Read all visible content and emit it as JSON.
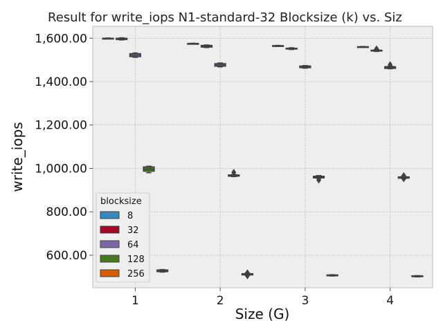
{
  "chart_data": {
    "type": "box",
    "title": "Result for write_iops N1-standard-32 Blocksize (k) vs. Siz",
    "xlabel": "Size (G)",
    "ylabel": "write_iops",
    "categories": [
      "1",
      "2",
      "3",
      "4"
    ],
    "ylim": [
      450,
      1655
    ],
    "yticks": [
      600,
      800,
      1000,
      1200,
      1400,
      1600
    ],
    "ytick_labels": [
      "600.00",
      "800.00",
      "1,000.00",
      "1,200.00",
      "1,400.00",
      "1,600.00"
    ],
    "grid": true,
    "legend": {
      "title": "blocksize",
      "placement": "lower-left"
    },
    "series": [
      {
        "name": "8",
        "color": "#348ABD",
        "boxes": [
          {
            "q1": 1598,
            "median": 1599,
            "q3": 1600,
            "whislo": 1597,
            "whishi": 1601,
            "fliers": []
          },
          {
            "q1": 1574,
            "median": 1575,
            "q3": 1576,
            "whislo": 1573,
            "whishi": 1577,
            "fliers": []
          },
          {
            "q1": 1564,
            "median": 1565,
            "q3": 1566,
            "whislo": 1563,
            "whishi": 1567,
            "fliers": []
          },
          {
            "q1": 1559,
            "median": 1560,
            "q3": 1561,
            "whislo": 1558,
            "whishi": 1562,
            "fliers": []
          }
        ]
      },
      {
        "name": "32",
        "color": "#A60628",
        "boxes": [
          {
            "q1": 1594,
            "median": 1597,
            "q3": 1600,
            "whislo": 1592,
            "whishi": 1602,
            "fliers": []
          },
          {
            "q1": 1559,
            "median": 1563,
            "q3": 1567,
            "whislo": 1557,
            "whishi": 1569,
            "fliers": []
          },
          {
            "q1": 1550,
            "median": 1552,
            "q3": 1554,
            "whislo": 1548,
            "whishi": 1556,
            "fliers": []
          },
          {
            "q1": 1541,
            "median": 1543,
            "q3": 1545,
            "whislo": 1539,
            "whishi": 1547,
            "fliers": [
              1551
            ]
          }
        ]
      },
      {
        "name": "64",
        "color": "#7A68A6",
        "boxes": [
          {
            "q1": 1515,
            "median": 1522,
            "q3": 1529,
            "whislo": 1512,
            "whishi": 1532,
            "fliers": []
          },
          {
            "q1": 1471,
            "median": 1477,
            "q3": 1483,
            "whislo": 1468,
            "whishi": 1486,
            "fliers": []
          },
          {
            "q1": 1464,
            "median": 1468,
            "q3": 1472,
            "whislo": 1462,
            "whishi": 1474,
            "fliers": []
          },
          {
            "q1": 1461,
            "median": 1465,
            "q3": 1469,
            "whislo": 1459,
            "whishi": 1471,
            "fliers": [
              1478
            ]
          }
        ]
      },
      {
        "name": "128",
        "color": "#467821",
        "boxes": [
          {
            "q1": 987,
            "median": 997,
            "q3": 1007,
            "whislo": 980,
            "whishi": 1010,
            "fliers": []
          },
          {
            "q1": 964,
            "median": 967,
            "q3": 970,
            "whislo": 962,
            "whishi": 972,
            "fliers": [
              982
            ]
          },
          {
            "q1": 956,
            "median": 960,
            "q3": 964,
            "whislo": 954,
            "whishi": 967,
            "fliers": [
              946
            ]
          },
          {
            "q1": 955,
            "median": 958,
            "q3": 961,
            "whislo": 953,
            "whishi": 963,
            "fliers": [
              952,
              967
            ]
          }
        ]
      },
      {
        "name": "256",
        "color": "#D55E00",
        "boxes": [
          {
            "q1": 524,
            "median": 528,
            "q3": 532,
            "whislo": 522,
            "whishi": 534,
            "fliers": []
          },
          {
            "q1": 509,
            "median": 512,
            "q3": 515,
            "whislo": 507,
            "whishi": 517,
            "fliers": [
              505,
              519
            ]
          },
          {
            "q1": 505,
            "median": 507,
            "q3": 509,
            "whislo": 504,
            "whishi": 510,
            "fliers": []
          },
          {
            "q1": 501,
            "median": 503,
            "q3": 505,
            "whislo": 500,
            "whishi": 506,
            "fliers": []
          }
        ]
      }
    ]
  }
}
